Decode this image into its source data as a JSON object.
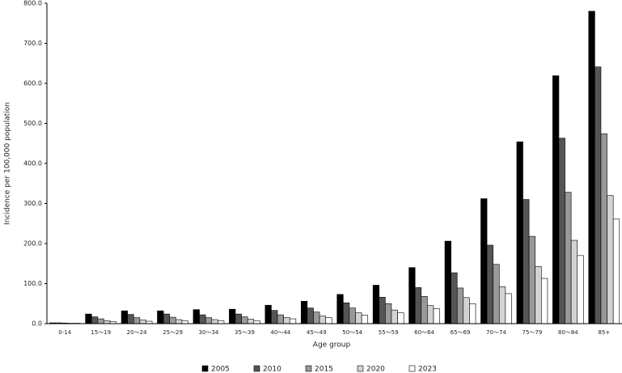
{
  "chart_data": {
    "type": "bar",
    "x_label": "Age group",
    "y_label": "Incidence per 100,000 population",
    "categories": [
      "0-14",
      "15～19",
      "20～24",
      "25～29",
      "30～34",
      "35～39",
      "40～44",
      "45～49",
      "50～54",
      "55～59",
      "60～64",
      "65～69",
      "70～74",
      "75～79",
      "80～84",
      "85+"
    ],
    "series": [
      {
        "name": "2005",
        "color": "#000000",
        "values": [
          2,
          24,
          32,
          32,
          35,
          36,
          46,
          56,
          73,
          96,
          140,
          206,
          312,
          454,
          619,
          780
        ]
      },
      {
        "name": "2010",
        "color": "#555555",
        "values": [
          2,
          17,
          23,
          24,
          22,
          24,
          33,
          39,
          52,
          66,
          90,
          127,
          196,
          310,
          463,
          641
        ]
      },
      {
        "name": "2015",
        "color": "#999999",
        "values": [
          1.5,
          12,
          15,
          16,
          15,
          17,
          22,
          29,
          39,
          50,
          68,
          89,
          148,
          218,
          328,
          474
        ]
      },
      {
        "name": "2020",
        "color": "#d3d3d3",
        "values": [
          1,
          7,
          9,
          10,
          10,
          11,
          15,
          19,
          27,
          34,
          45,
          65,
          92,
          143,
          208,
          320
        ]
      },
      {
        "name": "2023",
        "color": "#ffffff",
        "values": [
          1,
          5,
          6,
          7,
          7,
          7,
          12,
          15,
          21,
          27,
          37,
          50,
          75,
          113,
          170,
          261
        ]
      }
    ],
    "ylim": [
      0,
      800
    ],
    "yticks": [
      {
        "value": 0,
        "label": "0.0"
      },
      {
        "value": 100,
        "label": "100.0"
      },
      {
        "value": 200,
        "label": "200.0"
      },
      {
        "value": 300,
        "label": "300.0"
      },
      {
        "value": 400,
        "label": "400.0"
      },
      {
        "value": 500,
        "label": "500.0"
      },
      {
        "value": 600,
        "label": "600.0"
      },
      {
        "value": 700,
        "label": "700.0"
      },
      {
        "value": 800,
        "label": "800.0"
      }
    ],
    "legend": "bottom"
  }
}
